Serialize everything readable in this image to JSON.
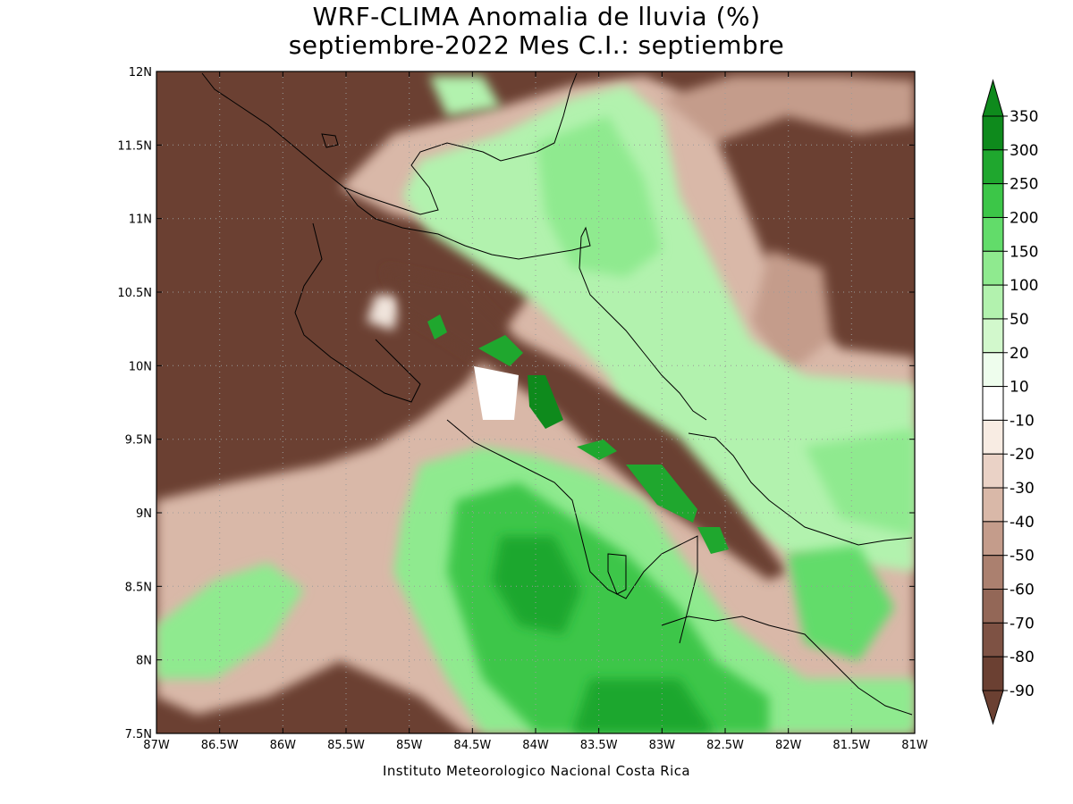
{
  "title": {
    "line1": "WRF-CLIMA Anomalia de lluvia (%)",
    "line2": "septiembre-2022 Mes C.I.: septiembre"
  },
  "credit": "Instituto Meteorologico Nacional Costa Rica",
  "axes": {
    "x_ticks": [
      "87W",
      "86.5W",
      "86W",
      "85.5W",
      "85W",
      "84.5W",
      "84W",
      "83.5W",
      "83W",
      "82.5W",
      "82W",
      "81.5W",
      "81W"
    ],
    "y_ticks": [
      "12N",
      "11.5N",
      "11N",
      "10.5N",
      "10N",
      "9.5N",
      "9N",
      "8.5N",
      "8N",
      "7.5N"
    ],
    "lon_range": [
      -87,
      -81
    ],
    "lat_range": [
      7.5,
      12
    ]
  },
  "colorbar": {
    "labels": [
      "350",
      "300",
      "250",
      "200",
      "150",
      "100",
      "50",
      "20",
      "10",
      "-10",
      "-20",
      "-30",
      "-40",
      "-50",
      "-60",
      "-70",
      "-80",
      "-90"
    ],
    "colors": [
      "#0e8a1c",
      "#1fa72e",
      "#3cc648",
      "#62dc6a",
      "#8fea8f",
      "#b2f2ae",
      "#d2f8cc",
      "#eefded",
      "#ffffff",
      "#f8ece3",
      "#ead2c6",
      "#d9b8a8",
      "#c49c8b",
      "#ab806f",
      "#936757",
      "#7e5244",
      "#6b4032"
    ]
  },
  "map": {
    "dry_color": "#6b4032",
    "wet_color": "#3cc648"
  }
}
